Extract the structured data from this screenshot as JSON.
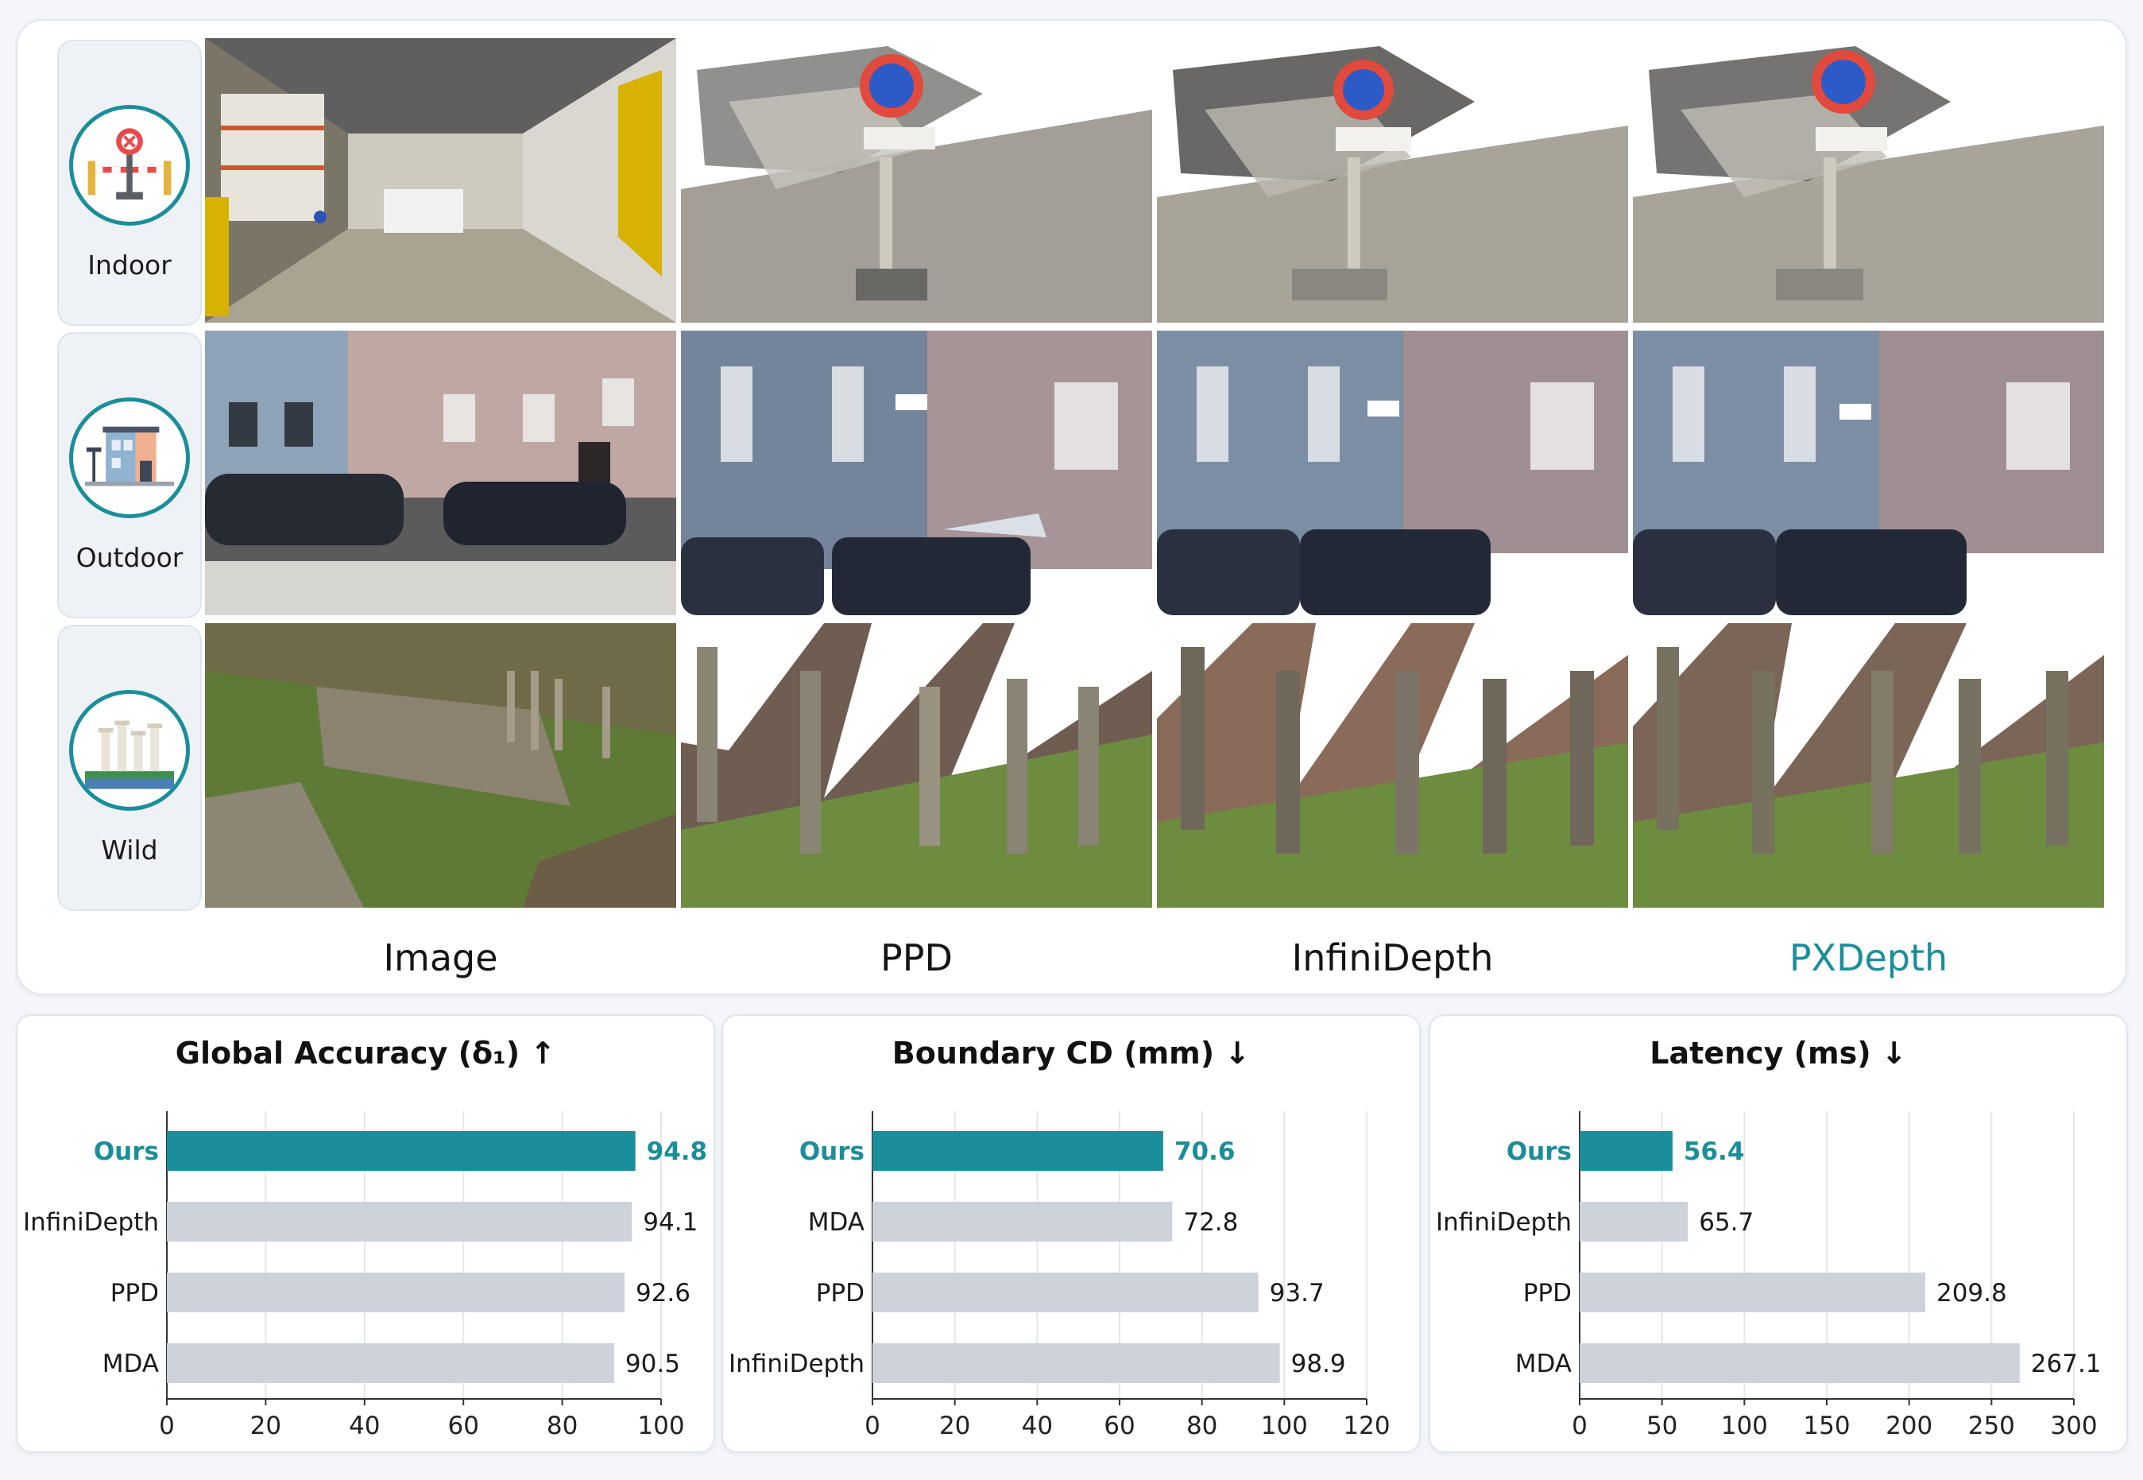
{
  "figure": {
    "rows": [
      {
        "label": "Indoor",
        "icon": "no-parking-sign-icon"
      },
      {
        "label": "Outdoor",
        "icon": "house-icon"
      },
      {
        "label": "Wild",
        "icon": "columns-ruins-icon"
      }
    ],
    "columns": [
      "Image",
      "PPD",
      "InfiniDepth",
      "PXDepth"
    ]
  },
  "colors": {
    "accent": "#1a8e9a",
    "bar_gray": "#cdd2db",
    "grid": "#e3e6eb"
  },
  "chart_data": [
    {
      "type": "bar",
      "orientation": "horizontal",
      "title": "Global Accuracy (δ₁) ↑",
      "categories": [
        "Ours",
        "InfiniDepth",
        "PPD",
        "MDA"
      ],
      "values": [
        94.8,
        94.1,
        92.6,
        90.5
      ],
      "value_labels": [
        "94.8",
        "94.1",
        "92.6",
        "90.5"
      ],
      "highlight": "Ours",
      "xlim": [
        0,
        100
      ],
      "ticks": [
        0,
        20,
        40,
        60,
        80,
        100
      ],
      "grid": true
    },
    {
      "type": "bar",
      "orientation": "horizontal",
      "title": "Boundary CD (mm) ↓",
      "categories": [
        "Ours",
        "MDA",
        "PPD",
        "InfiniDepth"
      ],
      "values": [
        70.6,
        72.8,
        93.7,
        98.9
      ],
      "value_labels": [
        "70.6",
        "72.8",
        "93.7",
        "98.9"
      ],
      "highlight": "Ours",
      "xlim": [
        0,
        120
      ],
      "ticks": [
        0,
        20,
        40,
        60,
        80,
        100,
        120
      ],
      "grid": true
    },
    {
      "type": "bar",
      "orientation": "horizontal",
      "title": "Latency (ms) ↓",
      "categories": [
        "Ours",
        "InfiniDepth",
        "PPD",
        "MDA"
      ],
      "values": [
        56.4,
        65.7,
        209.8,
        267.1
      ],
      "value_labels": [
        "56.4",
        "65.7",
        "209.8",
        "267.1"
      ],
      "highlight": "Ours",
      "xlim": [
        0,
        300
      ],
      "ticks": [
        0,
        50,
        100,
        150,
        200,
        250,
        300
      ],
      "grid": true
    }
  ]
}
